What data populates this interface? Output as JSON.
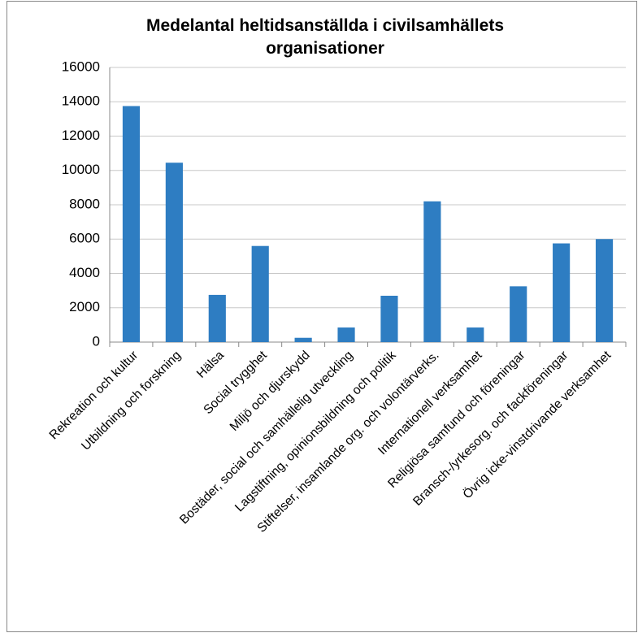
{
  "chart_data": {
    "type": "bar",
    "title": "Medelantal heltidsanställda i civilsamhällets organisationer",
    "categories": [
      "Rekreation och kultur",
      "Utbildning och forskning",
      "Hälsa",
      "Social trygghet",
      "Miljö och djurskydd",
      "Bostäder, social och samhällelig utveckling",
      "Lagstiftning, opinionsbildning och politik",
      "Stiftelser, insamlande org. och volontärverks.",
      "Internationell verksamhet",
      "Religiösa samfund och föreningar",
      "Bransch-/yrkesorg. och fackföreningar",
      "Övrig icke-vinstdrivande verksamhet"
    ],
    "values": [
      13750,
      10450,
      2750,
      5600,
      250,
      850,
      2700,
      8200,
      850,
      3250,
      5750,
      6000
    ],
    "color": "#2e7dc2",
    "ylim": [
      0,
      16000
    ],
    "yticks": [
      0,
      2000,
      4000,
      6000,
      8000,
      10000,
      12000,
      14000,
      16000
    ],
    "grid": true
  }
}
